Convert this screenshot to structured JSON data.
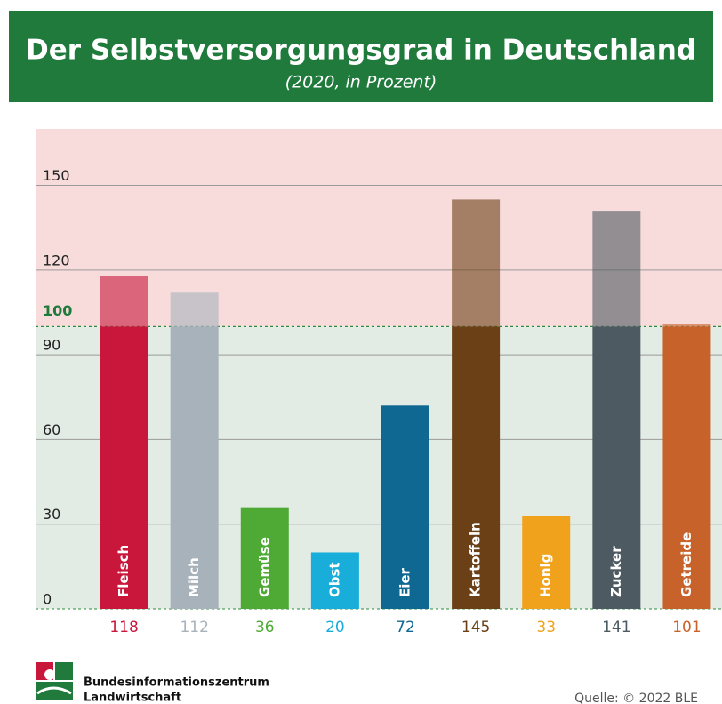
{
  "chart_data": {
    "type": "bar",
    "title": "Der Selbstversorgungsgrad in Deutschland",
    "subtitle": "(2020, in Prozent)",
    "categories": [
      "Fleisch",
      "Milch",
      "Gemüse",
      "Obst",
      "Eier",
      "Kartoffeln",
      "Honig",
      "Zucker",
      "Getreide"
    ],
    "values": [
      118,
      112,
      36,
      20,
      72,
      145,
      33,
      141,
      101
    ],
    "colors": [
      "#c8173a",
      "#a8b2ba",
      "#4ea935",
      "#19aed9",
      "#0f6892",
      "#6c4016",
      "#f0a21c",
      "#4e5a61",
      "#c7622b"
    ],
    "ylim": [
      0,
      170
    ],
    "yticks": [
      0,
      30,
      60,
      90,
      120,
      150
    ],
    "reference_value": 100,
    "grid": true,
    "publisher": [
      "Bundesinformationszentrum",
      "Landwirtschaft"
    ],
    "source": "Quelle: © 2022 BLE"
  }
}
